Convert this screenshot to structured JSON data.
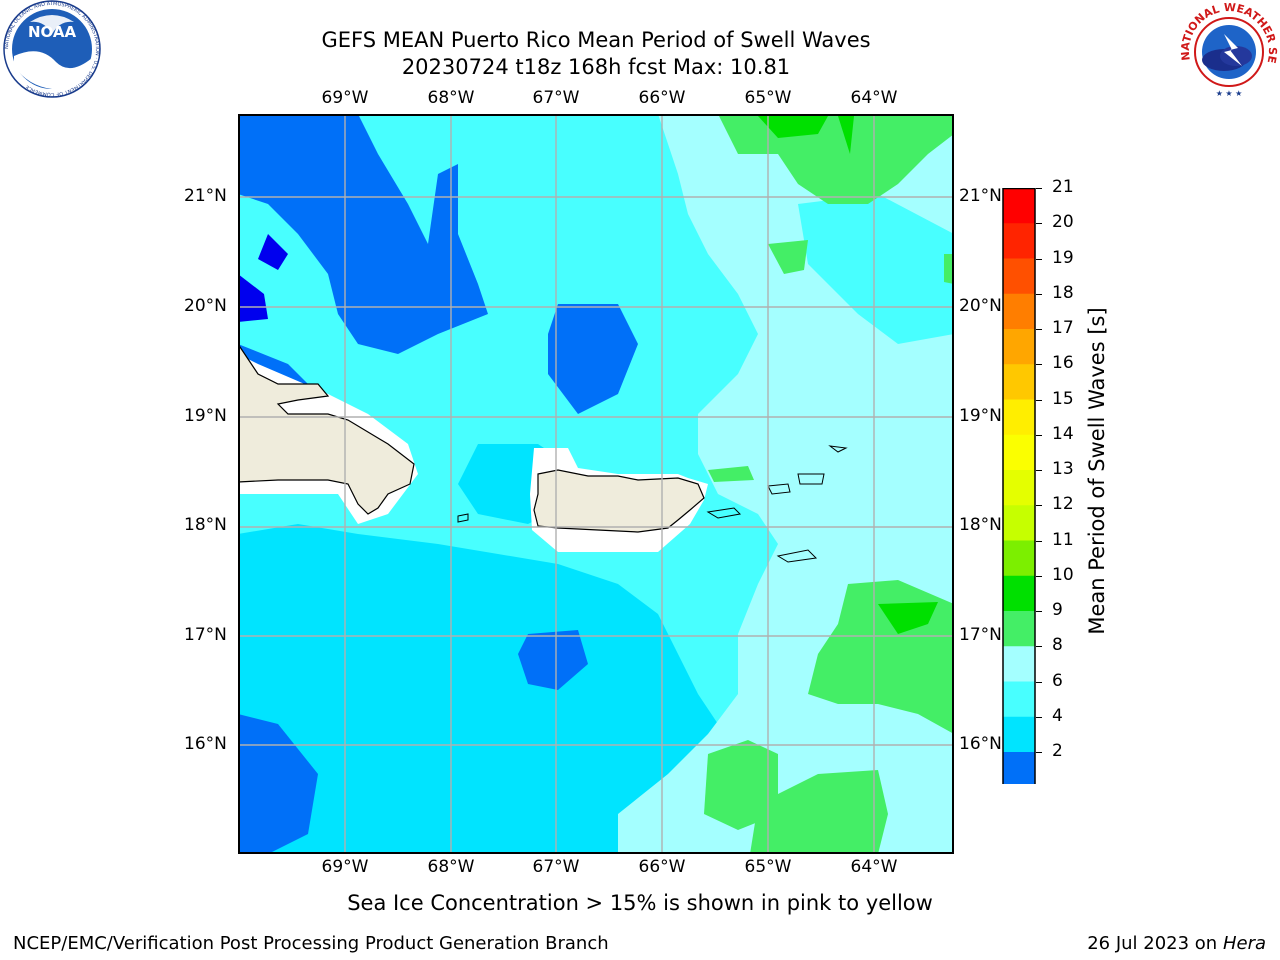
{
  "header": {
    "title_line1": "GEFS MEAN Puerto Rico Mean Period of Swell Waves",
    "title_line2": "20230724 t18z 168h fcst   Max: 10.81"
  },
  "logos": {
    "left": "NOAA",
    "left_ring": "NATIONAL OCEANIC AND ATMOSPHERIC ADMINISTRATION · U.S. DEPARTMENT OF COMMERCE",
    "right_ring": "NATIONAL WEATHER SERVICE"
  },
  "map": {
    "lon_labels": [
      "69°W",
      "68°W",
      "67°W",
      "66°W",
      "65°W",
      "64°W"
    ],
    "lat_labels": [
      "21°N",
      "20°N",
      "19°N",
      "18°N",
      "17°N",
      "16°N"
    ],
    "colors": {
      "land": "#efecdc",
      "grid": "#b0b0b0",
      "coast": "#000000"
    }
  },
  "colorbar": {
    "label": "Mean Period of Swell Waves [s]",
    "ticks": [
      "21",
      "20",
      "19",
      "18",
      "17",
      "16",
      "15",
      "14",
      "13",
      "12",
      "11",
      "10",
      "9",
      "8",
      "6",
      "4",
      "2"
    ],
    "colors": [
      "#ff0000",
      "#ff2400",
      "#ff5000",
      "#ff7e00",
      "#ffa600",
      "#ffc800",
      "#ffee00",
      "#fbff00",
      "#e4ff00",
      "#c6ff00",
      "#7cef00",
      "#00e000",
      "#44ee66",
      "#a4ffff",
      "#48ffff",
      "#00e4ff",
      "#0070f8"
    ],
    "under_color": "#0000ee"
  },
  "footer": {
    "note": "Sea Ice Concentration > 15% is shown in pink to yellow",
    "left": "NCEP/EMC/Verification Post Processing Product Generation Branch",
    "right_date": "26 Jul 2023 on ",
    "right_host": "Hera"
  }
}
